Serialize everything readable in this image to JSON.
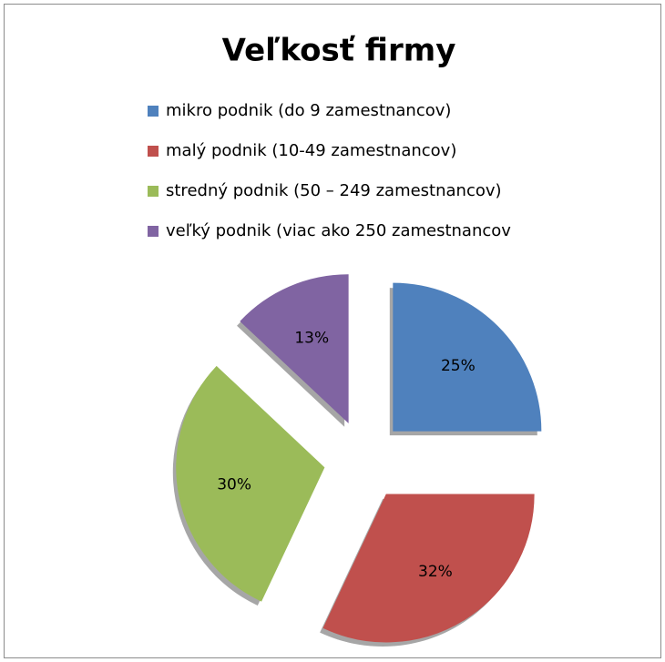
{
  "chart_data": {
    "type": "pie",
    "title": "Veľkosť firmy",
    "categories": [
      "mikro podnik (do 9 zamestnancov)",
      "malý podnik (10-49 zamestnancov)",
      "stredný podnik (50 – 249 zamestnancov)",
      "veľký podnik (viac ako 250 zamestnancov"
    ],
    "values": [
      25,
      32,
      30,
      13
    ],
    "value_labels": [
      "25%",
      "32%",
      "30%",
      "13%"
    ],
    "colors": [
      "#4f81bd",
      "#c0504d",
      "#9bbb59",
      "#8064a2"
    ],
    "legend": "top"
  }
}
